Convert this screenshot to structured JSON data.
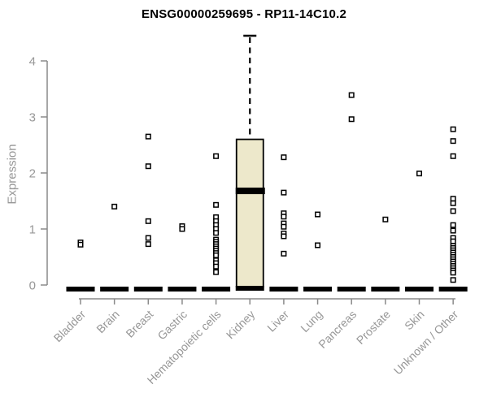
{
  "colors": {
    "background": "#FFFFFF",
    "title": "#000000",
    "axis_line": "#8A8A8A",
    "axis_text": "#979797",
    "box_fill": "#EDE8CB",
    "box_stroke": "#000000",
    "point_stroke": "#000000",
    "point_fill": "#FFFFFF"
  },
  "chart_data": {
    "type": "boxplot",
    "title": "ENSG00000259695 - RP11-14C10.2",
    "ylabel": "Expression",
    "xlabel": "",
    "ylim": [
      0,
      4.6
    ],
    "yticks": [
      0,
      1,
      2,
      3,
      4
    ],
    "grid": false,
    "legend": "none",
    "categories": [
      "Bladder",
      "Brain",
      "Breast",
      "Gastric",
      "Hematopoietic cells",
      "Kidney",
      "Liver",
      "Lung",
      "Pancreas",
      "Prostate",
      "Skin",
      "Unknown / Other"
    ],
    "series": [
      {
        "category": "Bladder",
        "q1": 0,
        "median": 0,
        "q3": 0,
        "whisker_low": 0,
        "whisker_high": 0,
        "points": [
          0.76,
          0.72
        ]
      },
      {
        "category": "Brain",
        "q1": 0,
        "median": 0,
        "q3": 0,
        "whisker_low": 0,
        "whisker_high": 0,
        "points": [
          1.4
        ]
      },
      {
        "category": "Breast",
        "q1": 0,
        "median": 0,
        "q3": 0,
        "whisker_low": 0,
        "whisker_high": 0,
        "points": [
          2.65,
          2.12,
          1.14,
          0.84,
          0.73
        ]
      },
      {
        "category": "Gastric",
        "q1": 0,
        "median": 0,
        "q3": 0,
        "whisker_low": 0,
        "whisker_high": 0,
        "points": [
          1.05,
          1.0
        ]
      },
      {
        "category": "Hematopoietic cells",
        "q1": 0,
        "median": 0,
        "q3": 0,
        "whisker_low": 0,
        "whisker_high": 0,
        "points": [
          2.3,
          1.43,
          1.21,
          1.14,
          1.07,
          1.0,
          0.93,
          0.81,
          0.77,
          0.73,
          0.69,
          0.65,
          0.61,
          0.57,
          0.53,
          0.44,
          0.39,
          0.33,
          0.23
        ]
      },
      {
        "category": "Kidney",
        "q1": 0,
        "median": 1.68,
        "q3": 2.6,
        "whisker_low": 0,
        "whisker_high": 4.45,
        "points": []
      },
      {
        "category": "Liver",
        "q1": 0,
        "median": 0,
        "q3": 0,
        "whisker_low": 0,
        "whisker_high": 0,
        "points": [
          2.28,
          1.65,
          1.28,
          1.22,
          1.1,
          1.04,
          0.92,
          0.87,
          0.56
        ]
      },
      {
        "category": "Lung",
        "q1": 0,
        "median": 0,
        "q3": 0,
        "whisker_low": 0,
        "whisker_high": 0,
        "points": [
          1.26,
          0.71
        ]
      },
      {
        "category": "Pancreas",
        "q1": 0,
        "median": 0,
        "q3": 0,
        "whisker_low": 0,
        "whisker_high": 0,
        "points": [
          3.39,
          2.96
        ]
      },
      {
        "category": "Prostate",
        "q1": 0,
        "median": 0,
        "q3": 0,
        "whisker_low": 0,
        "whisker_high": 0,
        "points": [
          1.17
        ]
      },
      {
        "category": "Skin",
        "q1": 0,
        "median": 0,
        "q3": 0,
        "whisker_low": 0,
        "whisker_high": 0,
        "points": [
          1.99
        ]
      },
      {
        "category": "Unknown / Other",
        "q1": 0,
        "median": 0,
        "q3": 0,
        "whisker_low": 0,
        "whisker_high": 0,
        "points": [
          2.78,
          2.57,
          2.3,
          1.54,
          1.46,
          1.32,
          1.07,
          0.97,
          0.84,
          0.78,
          0.7,
          0.66,
          0.62,
          0.58,
          0.54,
          0.5,
          0.46,
          0.42,
          0.38,
          0.34,
          0.3,
          0.26,
          0.22,
          0.09
        ]
      }
    ]
  }
}
